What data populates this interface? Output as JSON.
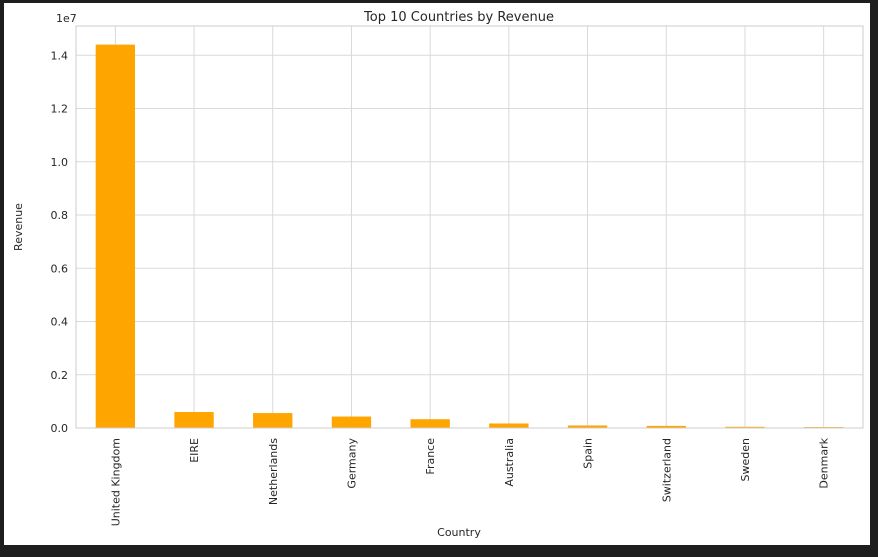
{
  "chart_data": {
    "type": "bar",
    "title": "Top 10 Countries by Revenue",
    "xlabel": "Country",
    "ylabel": "Revenue",
    "offset_label": "1e7",
    "categories": [
      "United Kingdom",
      "EIRE",
      "Netherlands",
      "Germany",
      "France",
      "Australia",
      "Spain",
      "Switzerland",
      "Sweden",
      "Denmark"
    ],
    "values": [
      14400000,
      600000,
      560000,
      430000,
      330000,
      170000,
      95000,
      80000,
      45000,
      35000
    ],
    "ylim": [
      0,
      15100000
    ],
    "yticks": [
      0,
      2000000,
      4000000,
      6000000,
      8000000,
      10000000,
      12000000,
      14000000
    ],
    "ytick_labels": [
      "0.0",
      "0.2",
      "0.4",
      "0.6",
      "0.8",
      "1.0",
      "1.2",
      "1.4"
    ],
    "bar_color": "#ffa500",
    "grid": true,
    "legend": false
  }
}
